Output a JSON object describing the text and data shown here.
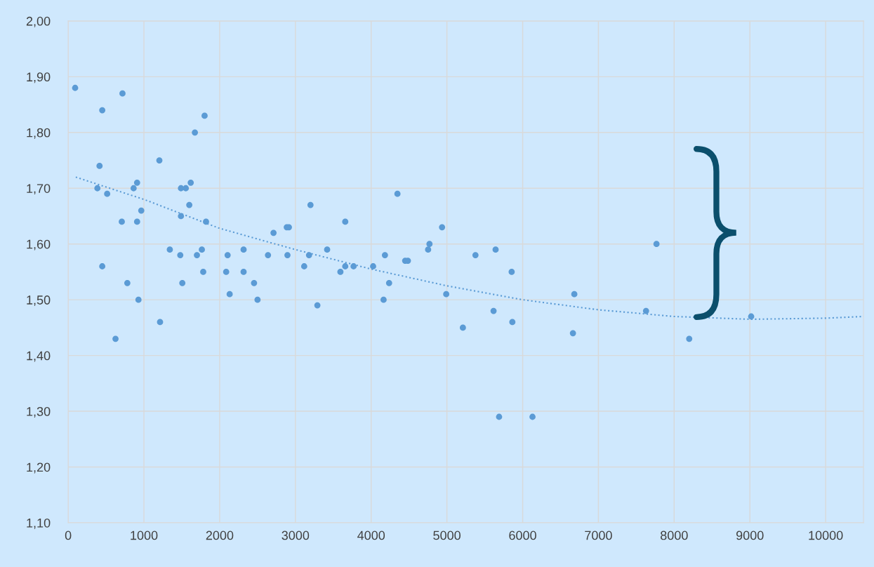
{
  "chart_data": {
    "type": "scatter",
    "xlim": [
      0,
      10500
    ],
    "xticks": [
      0,
      1000,
      2000,
      3000,
      4000,
      5000,
      6000,
      7000,
      8000,
      9000,
      10000
    ],
    "ylim": [
      1.1,
      2.0
    ],
    "yticks": [
      {
        "value": 1.1,
        "label": "1,10"
      },
      {
        "value": 1.2,
        "label": "1,20"
      },
      {
        "value": 1.3,
        "label": "1,30"
      },
      {
        "value": 1.4,
        "label": "1,40"
      },
      {
        "value": 1.5,
        "label": "1,50"
      },
      {
        "value": 1.6,
        "label": "1,60"
      },
      {
        "value": 1.7,
        "label": "1,70"
      },
      {
        "value": 1.8,
        "label": "1,80"
      },
      {
        "value": 1.9,
        "label": "1,90"
      },
      {
        "value": 2.0,
        "label": "2,00"
      }
    ],
    "grid": true,
    "marker": "circle",
    "series": [
      {
        "color": "#5b9bd5",
        "x": [
          92,
          717,
          450,
          414,
          386,
          515,
          450,
          708,
          781,
          625,
          864,
          910,
          910,
          965,
          928,
          1204,
          1213,
          1342,
          1489,
          1489,
          1480,
          1507,
          1553,
          1599,
          1618,
          1673,
          1700,
          1765,
          1783,
          1801,
          1820,
          2086,
          2105,
          2132,
          2316,
          2316,
          2454,
          2500,
          2638,
          2711,
          2886,
          2914,
          2895,
          3116,
          3180,
          3199,
          3290,
          3419,
          3594,
          3658,
          3658,
          3768,
          4026,
          4164,
          4182,
          4237,
          4347,
          4449,
          4485,
          4752,
          4770,
          4936,
          4991,
          5211,
          5377,
          5616,
          5643,
          5689,
          5855,
          5864,
          6130,
          6664,
          6682,
          7629,
          7767,
          8199,
          9017
        ],
        "values": [
          1.88,
          1.87,
          1.84,
          1.74,
          1.7,
          1.69,
          1.56,
          1.64,
          1.53,
          1.43,
          1.7,
          1.71,
          1.64,
          1.66,
          1.5,
          1.75,
          1.46,
          1.59,
          1.7,
          1.65,
          1.58,
          1.53,
          1.7,
          1.67,
          1.71,
          1.8,
          1.58,
          1.59,
          1.55,
          1.83,
          1.64,
          1.55,
          1.58,
          1.51,
          1.59,
          1.55,
          1.53,
          1.5,
          1.58,
          1.62,
          1.63,
          1.63,
          1.58,
          1.56,
          1.58,
          1.67,
          1.49,
          1.59,
          1.55,
          1.64,
          1.56,
          1.56,
          1.56,
          1.5,
          1.58,
          1.53,
          1.69,
          1.57,
          1.57,
          1.59,
          1.6,
          1.63,
          1.51,
          1.45,
          1.58,
          1.48,
          1.59,
          1.29,
          1.55,
          1.46,
          1.29,
          1.44,
          1.51,
          1.48,
          1.6,
          1.43,
          1.47
        ]
      },
      {
        "type": "line",
        "color": "#5b9bd5",
        "line_style": "dotted",
        "marker": "none",
        "x": [
          100,
          1000,
          2000,
          3000,
          4000,
          5000,
          6000,
          7000,
          8000,
          9000,
          10000,
          10500
        ],
        "values": [
          1.72,
          1.68,
          1.628,
          1.59,
          1.555,
          1.525,
          1.5,
          1.482,
          1.47,
          1.465,
          1.467,
          1.47
        ]
      }
    ]
  }
}
